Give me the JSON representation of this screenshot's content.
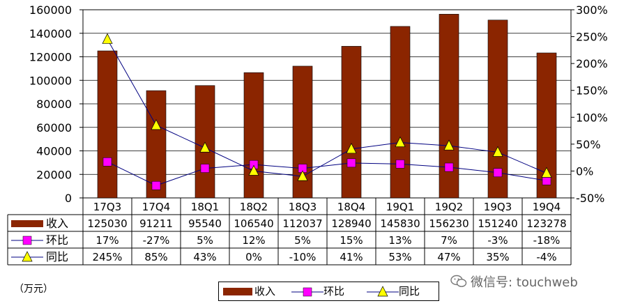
{
  "chart_data": {
    "type": "bar+line",
    "categories": [
      "17Q3",
      "17Q4",
      "18Q1",
      "18Q2",
      "18Q3",
      "18Q4",
      "19Q1",
      "19Q2",
      "19Q3",
      "19Q4"
    ],
    "series": [
      {
        "name": "收入",
        "type": "bar",
        "axis": "left",
        "color": "#8B2500",
        "values": [
          125030,
          91211,
          95540,
          106540,
          112037,
          128940,
          145830,
          156230,
          151240,
          123278
        ]
      },
      {
        "name": "环比",
        "type": "line",
        "axis": "right",
        "marker": "square",
        "color": "#FF00FF",
        "values": [
          17,
          -27,
          5,
          12,
          5,
          15,
          13,
          7,
          -3,
          -18
        ],
        "labels": [
          "17%",
          "-27%",
          "5%",
          "12%",
          "5%",
          "15%",
          "13%",
          "7%",
          "-3%",
          "-18%"
        ]
      },
      {
        "name": "同比",
        "type": "line",
        "axis": "right",
        "marker": "triangle",
        "color": "#FFFF00",
        "values": [
          245,
          85,
          43,
          0,
          -10,
          41,
          53,
          47,
          35,
          -4
        ],
        "labels": [
          "245%",
          "85%",
          "43%",
          "0%",
          "-10%",
          "41%",
          "53%",
          "47%",
          "35%",
          "-4%"
        ]
      }
    ],
    "left_axis": {
      "min": 0,
      "max": 160000,
      "step": 20000,
      "ticks": [
        "0",
        "20000",
        "40000",
        "60000",
        "80000",
        "100000",
        "120000",
        "140000",
        "160000"
      ]
    },
    "right_axis": {
      "min": -50,
      "max": 300,
      "step": 50,
      "ticks": [
        "-50%",
        "0%",
        "50%",
        "100%",
        "150%",
        "200%",
        "250%",
        "300%"
      ]
    },
    "unit": "（万元）",
    "legend": [
      "收入",
      "环比",
      "同比"
    ],
    "data_table": true
  },
  "watermark": "微信号: touchweb",
  "colors": {
    "bar": "#8B2500",
    "line": "#000080",
    "mom_marker": "#FF00FF",
    "yoy_marker": "#FFFF00"
  }
}
